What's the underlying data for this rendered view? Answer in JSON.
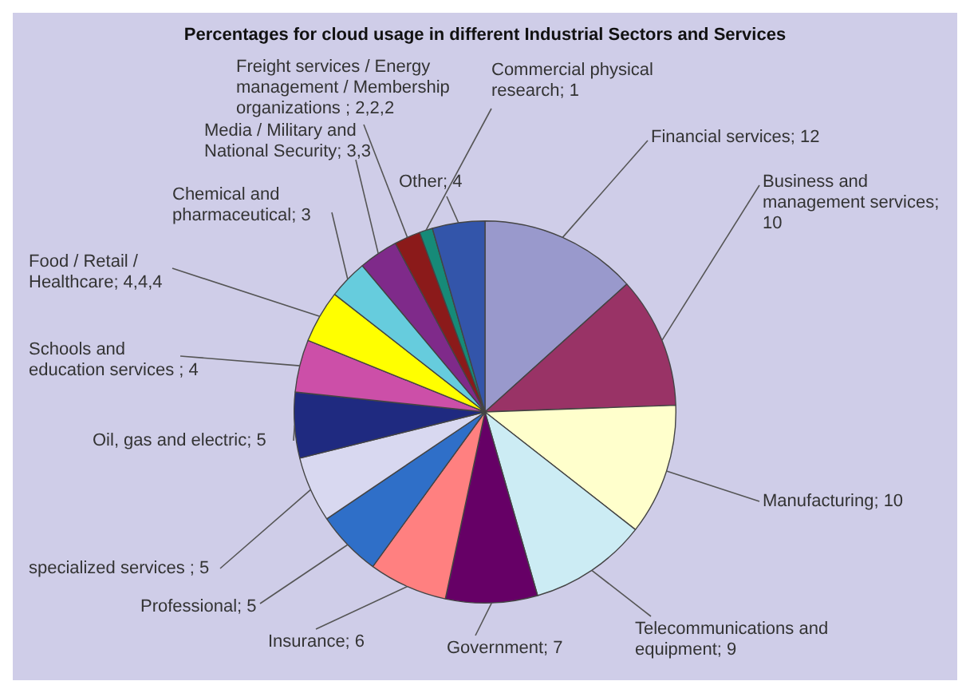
{
  "chart_data": {
    "type": "pie",
    "title": "Percentages for cloud usage in different Industrial Sectors and Services",
    "categories": [
      "Financial services; 12",
      "Business and management services; 10",
      "Manufacturing; 10",
      "Telecommunications and equipment; 9",
      "Government; 7",
      "Insurance; 6",
      "Professional; 5",
      "specialized services ; 5",
      "Oil, gas and electric; 5",
      "Schools and education services ; 4",
      "Food / Retail / Healthcare; 4,4,4",
      "Chemical and pharmaceutical; 3",
      "Media / Military and National Security; 3,3",
      "Freight services / Energy management / Membership organizations ; 2,2,2",
      "Commercial physical research; 1",
      "Other; 4"
    ],
    "values": [
      12,
      10,
      10,
      9,
      7,
      6,
      5,
      5,
      5,
      4,
      4,
      3,
      3,
      2,
      1,
      4
    ],
    "colors": [
      "#9999cc",
      "#993366",
      "#ffffcc",
      "#ccecf4",
      "#660066",
      "#ff8080",
      "#2f6fc8",
      "#d8d8f0",
      "#1f2a80",
      "#cc4fa8",
      "#ffff00",
      "#66ccdd",
      "#7f2a8a",
      "#8b1a1a",
      "#168a78",
      "#3355aa"
    ],
    "legend": false
  }
}
